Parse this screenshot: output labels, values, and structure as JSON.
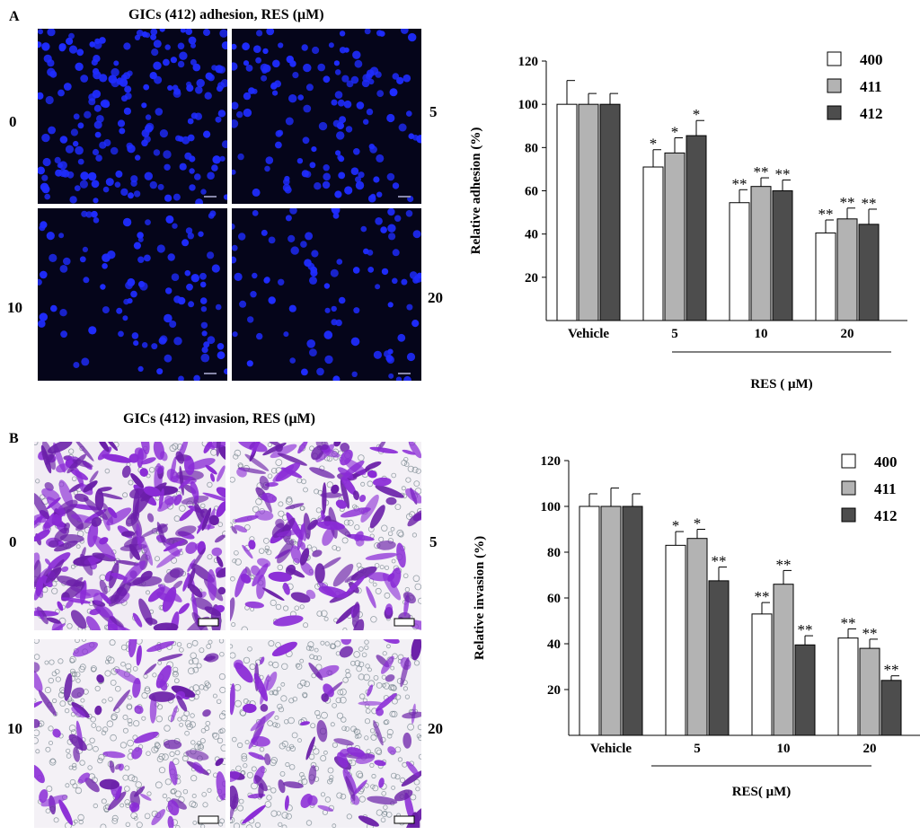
{
  "panels": [
    {
      "letter": "A",
      "micro_title": "GICs (412) adhesion, RES (μM)",
      "micro_labels": [
        "0",
        "5",
        "10",
        "20"
      ],
      "chart_data": {
        "type": "bar",
        "title": "",
        "categories": [
          "Vehicle",
          "5",
          "10",
          "20"
        ],
        "series": [
          {
            "name": "400",
            "values": [
              100,
              71,
              54.5,
              40.5
            ],
            "errors": [
              11,
              8,
              6,
              6
            ],
            "sig": [
              "",
              "*",
              "**",
              "**"
            ],
            "color": "#ffffff"
          },
          {
            "name": "411",
            "values": [
              100,
              77.5,
              62,
              47
            ],
            "errors": [
              5,
              7,
              4,
              5
            ],
            "sig": [
              "",
              "*",
              "**",
              "**"
            ],
            "color": "#b3b3b3"
          },
          {
            "name": "412",
            "values": [
              100,
              85.5,
              60,
              44.5
            ],
            "errors": [
              5,
              7,
              5,
              7
            ],
            "sig": [
              "",
              "*",
              "**",
              "**"
            ],
            "color": "#4d4d4d"
          }
        ],
        "ylabel": "Relative adhesion (%)",
        "xlabel": "RES ( μM)",
        "ylim": [
          0,
          120
        ],
        "yticks": [
          20,
          40,
          60,
          80,
          100,
          120
        ],
        "grid": false,
        "legend": "top-right"
      }
    },
    {
      "letter": "B",
      "micro_title": "GICs (412) invasion, RES (μM)",
      "micro_labels": [
        "0",
        "5",
        "10",
        "20"
      ],
      "chart_data": {
        "type": "bar",
        "title": "",
        "categories": [
          "Vehicle",
          "5",
          "10",
          "20"
        ],
        "series": [
          {
            "name": "400",
            "values": [
              100,
              83,
              53,
              42.5
            ],
            "errors": [
              5.5,
              6,
              5,
              4
            ],
            "sig": [
              "",
              "*",
              "**",
              "**"
            ],
            "color": "#ffffff"
          },
          {
            "name": "411",
            "values": [
              100,
              86,
              66,
              38
            ],
            "errors": [
              8,
              4,
              6,
              4
            ],
            "sig": [
              "",
              "*",
              "**",
              "**"
            ],
            "color": "#b3b3b3"
          },
          {
            "name": "412",
            "values": [
              100,
              67.5,
              39.5,
              24
            ],
            "errors": [
              5.5,
              6,
              4,
              2
            ],
            "sig": [
              "",
              "**",
              "**",
              "**"
            ],
            "color": "#4d4d4d"
          }
        ],
        "ylabel": "Relative invasion (%)",
        "xlabel": "RES( μM)",
        "ylim": [
          0,
          120
        ],
        "yticks": [
          20,
          40,
          60,
          80,
          100,
          120
        ],
        "grid": false,
        "legend": "top-right"
      }
    }
  ]
}
